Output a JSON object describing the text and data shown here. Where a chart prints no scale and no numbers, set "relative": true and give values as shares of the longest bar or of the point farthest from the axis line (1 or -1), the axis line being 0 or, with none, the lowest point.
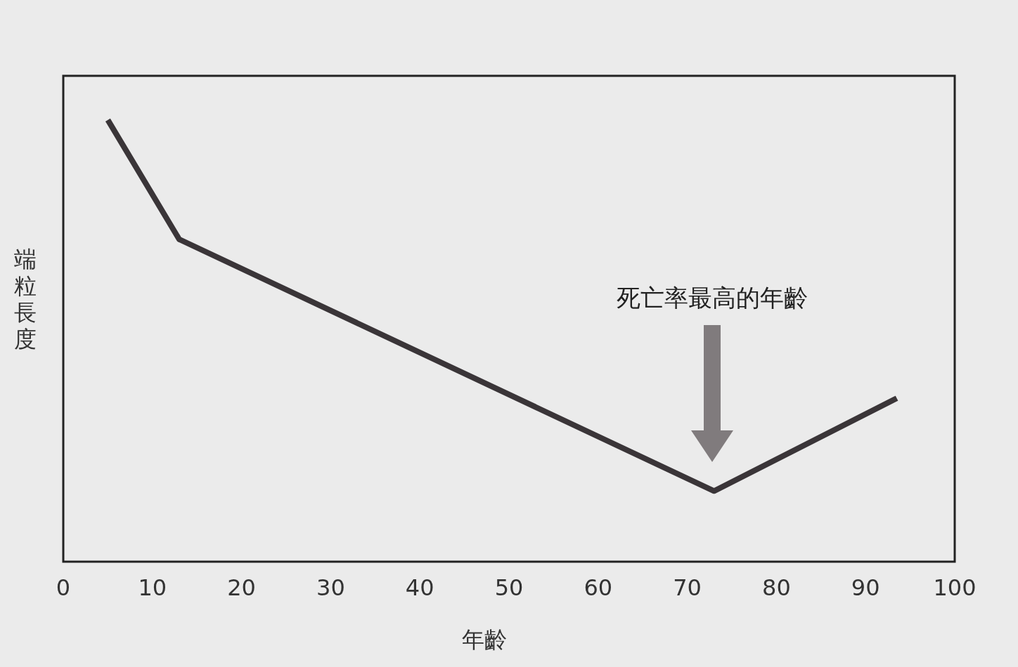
{
  "chart_data": {
    "type": "line",
    "relative": true,
    "xlabel": "年齡",
    "ylabel": "端粒長度",
    "x": [
      5,
      13,
      73,
      93.5
    ],
    "series": [
      {
        "color": "#3a3538",
        "values": [
          1,
          0.73,
          0.16,
          0.37
        ]
      }
    ],
    "xlim": [
      0,
      100
    ],
    "xticks": [
      0,
      10,
      20,
      30,
      40,
      50,
      60,
      70,
      80,
      90,
      100
    ],
    "annotations": [
      "死亡率最高的年齡"
    ],
    "grid": false,
    "marker": "none",
    "line_style": "solid"
  }
}
